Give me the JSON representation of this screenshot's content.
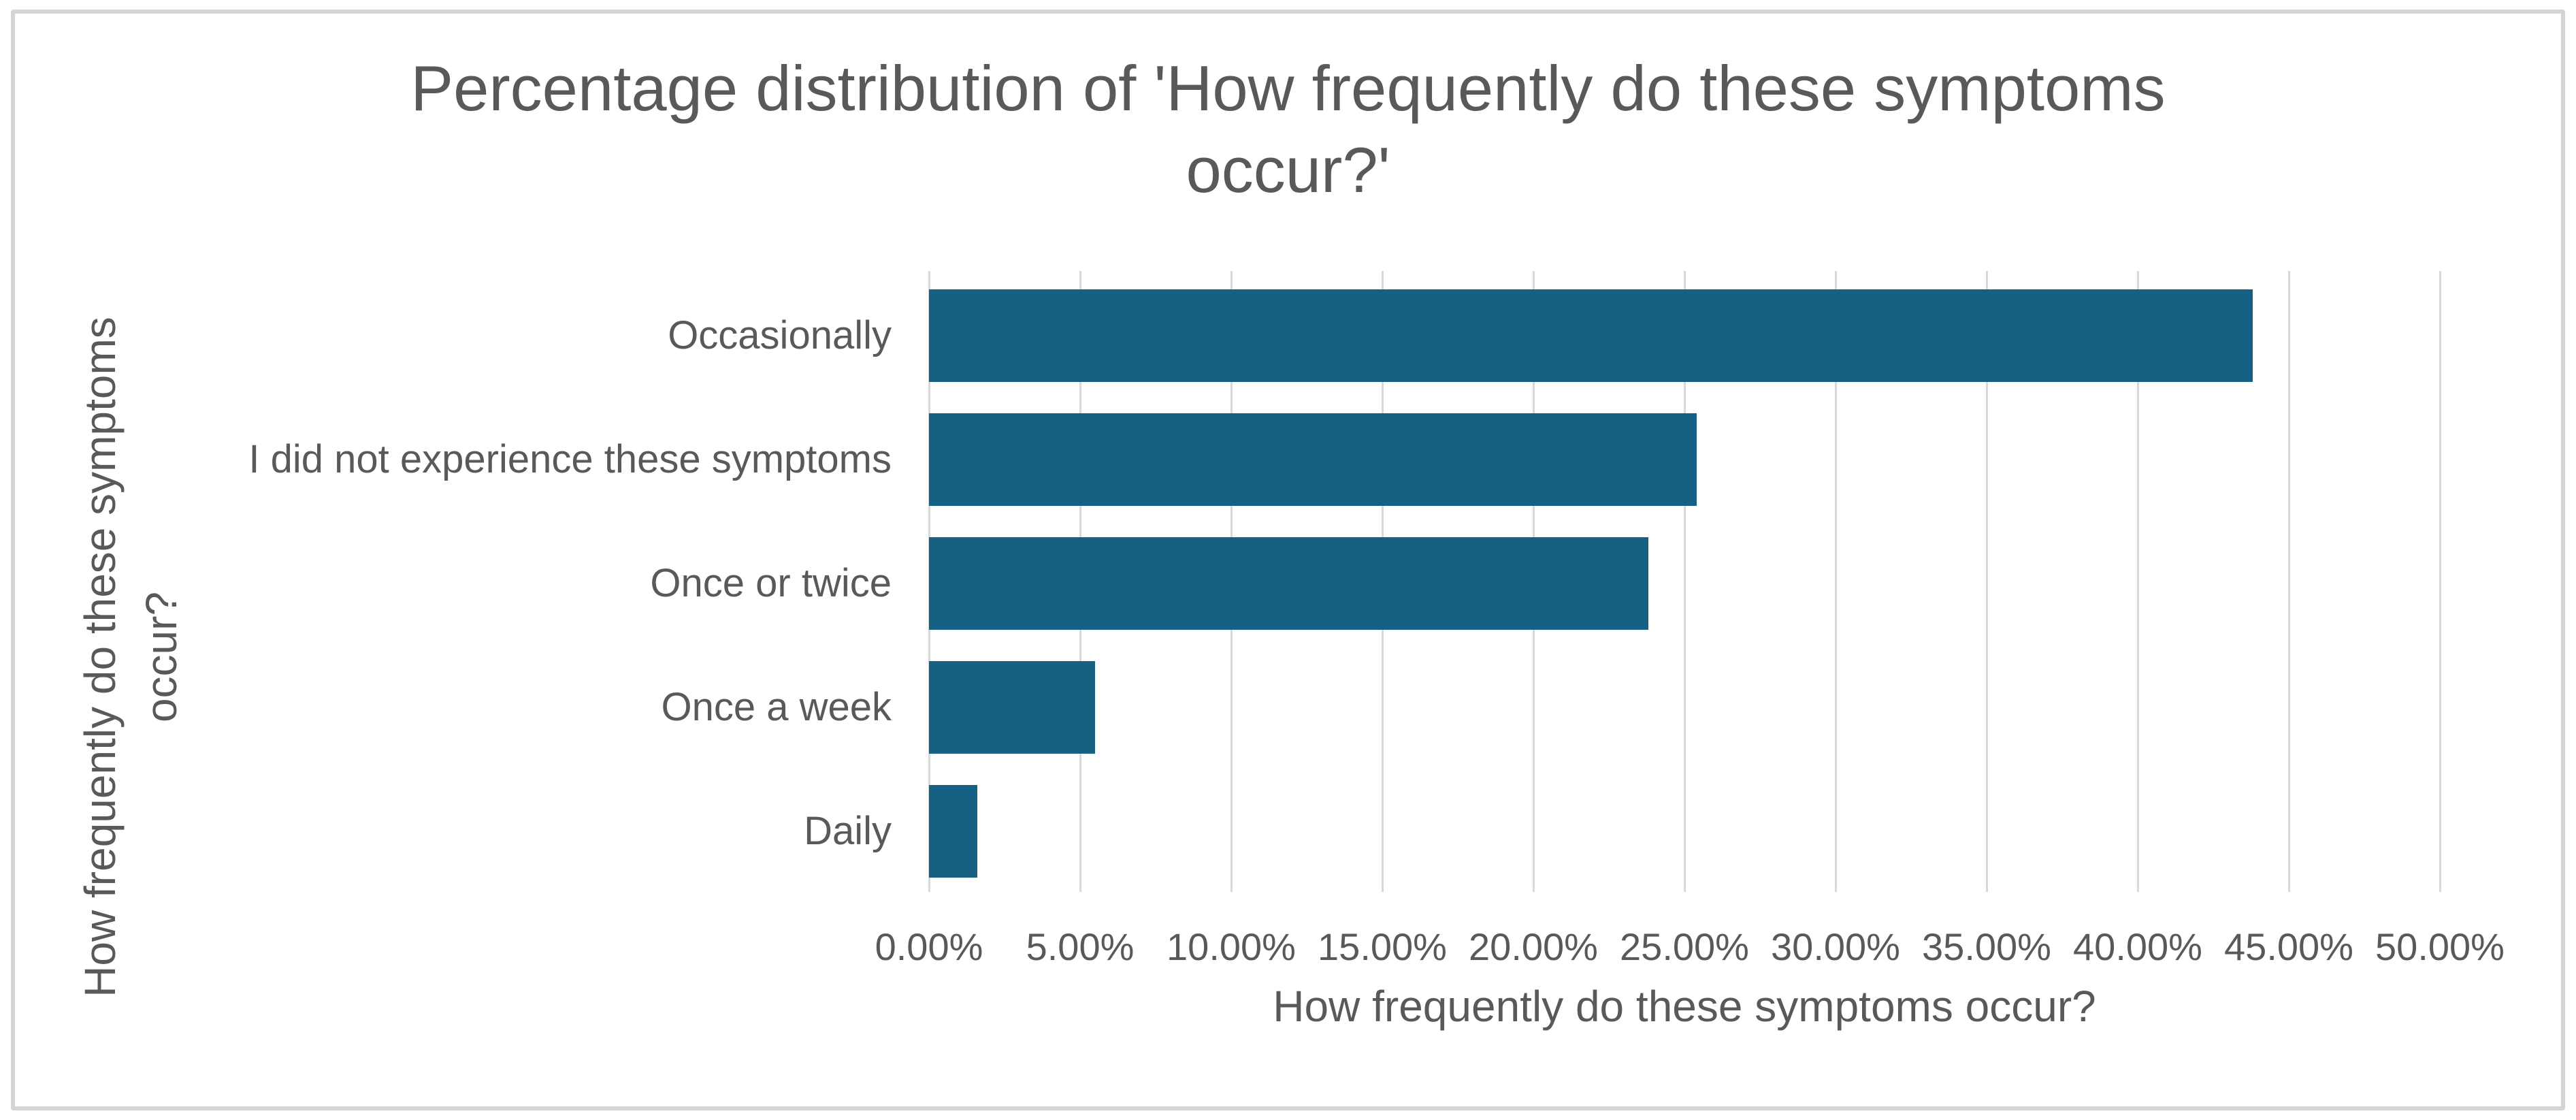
{
  "frame": {
    "border_color": "#d4d4d4"
  },
  "title": {
    "text": "Percentage distribution of 'How frequently do these symptoms occur?'",
    "lines": [
      "Percentage distribution of 'How frequently do these symptoms",
      "occur?'"
    ]
  },
  "y_axis": {
    "title": "How frequently do these symptoms occur?",
    "title_lines": [
      "How frequently do these symptoms",
      "occur?"
    ]
  },
  "x_axis": {
    "title": "How frequently do these symptoms occur?",
    "ticks": [
      "0.00%",
      "5.00%",
      "10.00%",
      "15.00%",
      "20.00%",
      "25.00%",
      "30.00%",
      "35.00%",
      "40.00%",
      "45.00%",
      "50.00%"
    ]
  },
  "chart_data": {
    "type": "bar",
    "orientation": "horizontal",
    "title": "Percentage distribution of 'How frequently do these symptoms occur?'",
    "xlabel": "How frequently do these symptoms occur?",
    "ylabel": "How frequently do these symptoms occur?",
    "categories": [
      "Occasionally",
      "I did not experience these symptoms",
      "Once or twice",
      "Once a week",
      "Daily"
    ],
    "values": [
      43.8,
      25.4,
      23.8,
      5.5,
      1.6
    ],
    "unit": "%",
    "xlim": [
      0,
      50
    ],
    "x_tick_step": 5,
    "x_tick_labels": [
      "0.00%",
      "5.00%",
      "10.00%",
      "15.00%",
      "20.00%",
      "25.00%",
      "30.00%",
      "35.00%",
      "40.00%",
      "45.00%",
      "50.00%"
    ],
    "grid": true,
    "legend": false,
    "bar_color": "#166083",
    "text_color": "#595959",
    "gridline_color": "#d9d9d9"
  }
}
